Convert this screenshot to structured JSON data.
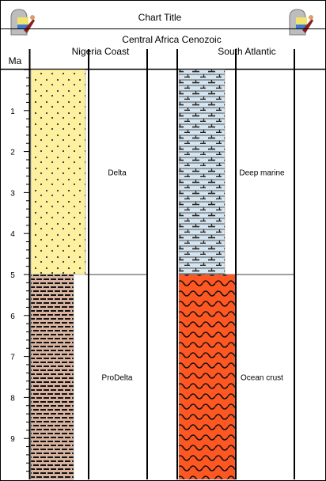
{
  "chart_title": "Chart Title",
  "region_title": "Central Africa Cenozoic",
  "axis": {
    "label": "Ma",
    "min": 0,
    "max": 10,
    "ticks": [
      1,
      2,
      3,
      4,
      5,
      6,
      7,
      8,
      9
    ]
  },
  "columns": [
    {
      "name": "Nigeria Coast",
      "units": [
        {
          "label": "Delta",
          "top": 0,
          "base": 5,
          "lithology": "sandstone-dotted",
          "color": "#fdf1a0"
        },
        {
          "label": "ProDelta",
          "top": 5,
          "base": 10,
          "lithology": "shale-brick",
          "color": "#d8b4a0"
        }
      ]
    },
    {
      "name": "South Atlantic",
      "units": [
        {
          "label": "Deep marine",
          "top": 0,
          "base": 5,
          "lithology": "marl-tee",
          "color": "#d6e4f0"
        },
        {
          "label": "Ocean crust",
          "top": 5,
          "base": 10,
          "lithology": "basalt-wavy",
          "color": "#ff5722"
        }
      ]
    }
  ],
  "logos": [
    "mascot-logo-left",
    "mascot-logo-right"
  ]
}
